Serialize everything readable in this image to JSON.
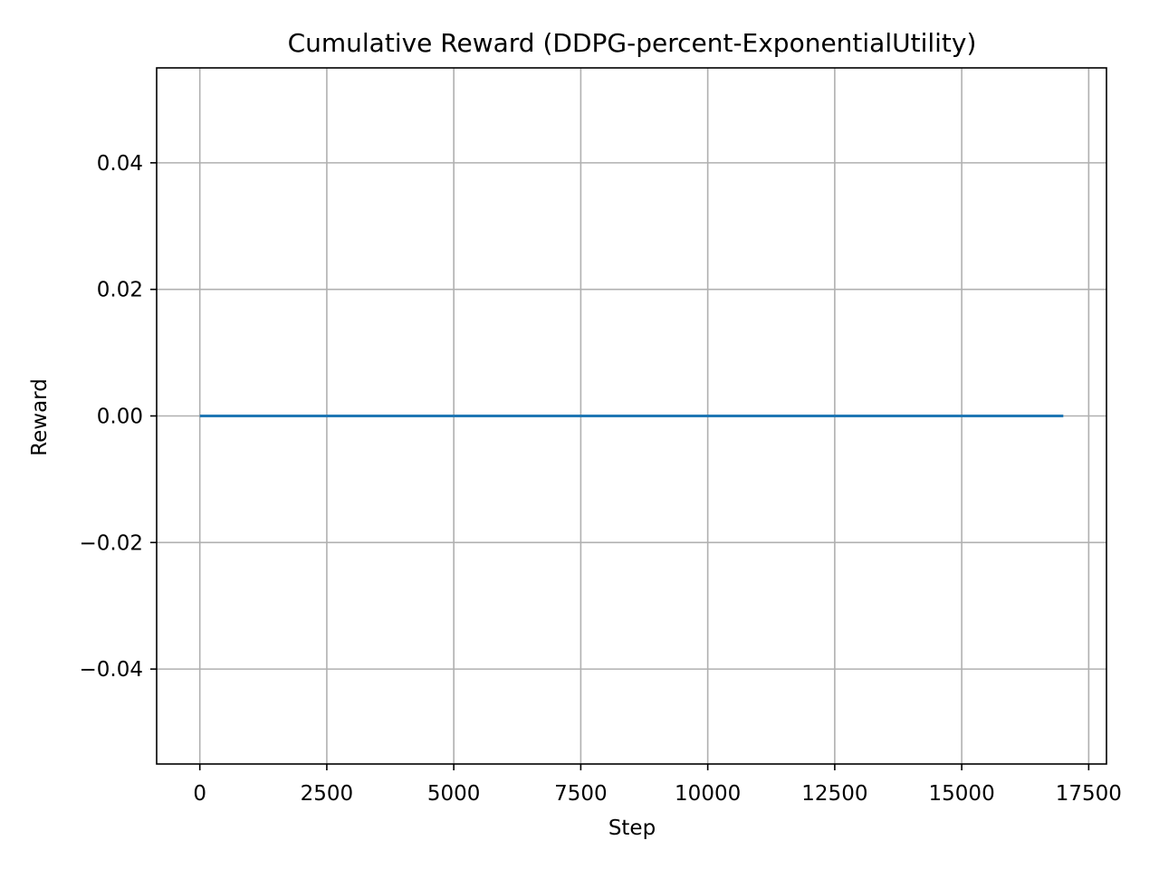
{
  "chart_data": {
    "type": "line",
    "title": "Cumulative Reward (DDPG-percent-ExponentialUtility)",
    "xlabel": "Step",
    "ylabel": "Reward",
    "xlim": [
      -850,
      17850
    ],
    "ylim": [
      -0.055,
      0.055
    ],
    "xticks": [
      0,
      2500,
      5000,
      7500,
      10000,
      12500,
      15000,
      17500
    ],
    "xtick_labels": [
      "0",
      "2500",
      "5000",
      "7500",
      "10000",
      "12500",
      "15000",
      "17500"
    ],
    "yticks": [
      -0.04,
      -0.02,
      0.0,
      0.02,
      0.04
    ],
    "ytick_labels": [
      "−0.04",
      "−0.02",
      "0.00",
      "0.02",
      "0.04"
    ],
    "grid": true,
    "series": [
      {
        "color": "#1f77b4",
        "x": [
          0,
          17000
        ],
        "y": [
          0.0,
          0.0
        ]
      }
    ]
  }
}
